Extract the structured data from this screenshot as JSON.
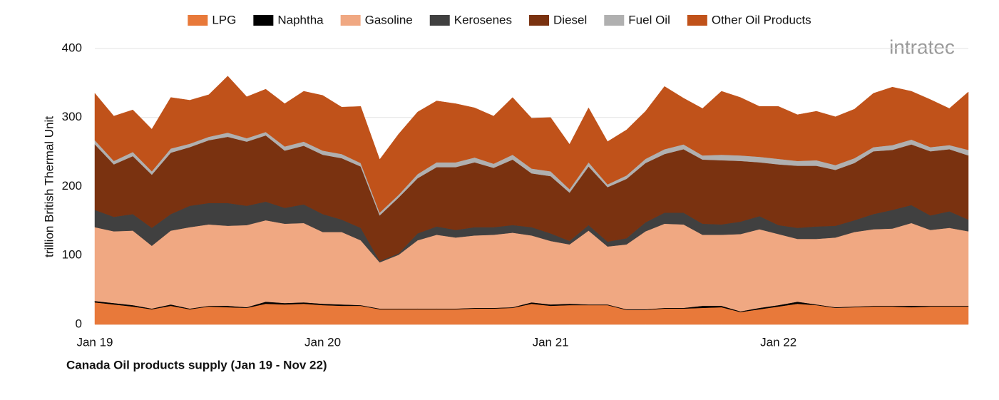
{
  "chart_data": {
    "type": "stacked-area",
    "caption": "Canada Oil products supply (Jan 19 - Nov 22)",
    "logo": "intratec",
    "y_label": "trillion British Thermal Unit",
    "categories": [
      "Jan 19",
      null,
      null,
      null,
      null,
      null,
      null,
      null,
      null,
      null,
      null,
      null,
      "Jan 20",
      null,
      null,
      null,
      null,
      null,
      null,
      null,
      null,
      null,
      null,
      null,
      "Jan 21",
      null,
      null,
      null,
      null,
      null,
      null,
      null,
      null,
      null,
      null,
      null,
      "Jan 22",
      null,
      null,
      null,
      null,
      null,
      null,
      null,
      null,
      null,
      null
    ],
    "ylim": [
      0,
      400
    ],
    "yticks": [
      0,
      100,
      200,
      300,
      400
    ],
    "grid": true,
    "series": [
      {
        "name": "LPG",
        "color": "#e8793a",
        "values": [
          32,
          29,
          26,
          22,
          27,
          22,
          26,
          25,
          24,
          30,
          29,
          30,
          28,
          27,
          27,
          22,
          22,
          22,
          22,
          22,
          23,
          23,
          24,
          30,
          27,
          28,
          28,
          28,
          21,
          21,
          23,
          23,
          24,
          25,
          18,
          22,
          26,
          30,
          28,
          24,
          25,
          26,
          26,
          25,
          26,
          26,
          26
        ]
      },
      {
        "name": "Naphtha",
        "color": "#000000",
        "values": [
          2,
          2,
          2,
          1,
          2,
          1,
          1,
          2,
          1,
          3,
          2,
          2,
          2,
          2,
          1,
          1,
          1,
          1,
          1,
          1,
          1,
          1,
          1,
          2,
          2,
          2,
          1,
          1,
          1,
          1,
          1,
          1,
          3,
          2,
          1,
          2,
          2,
          3,
          1,
          1,
          1,
          1,
          1,
          2,
          1,
          1,
          1
        ]
      },
      {
        "name": "Gasoline",
        "color": "#f0a882",
        "values": [
          107,
          104,
          108,
          91,
          107,
          118,
          118,
          116,
          119,
          118,
          115,
          115,
          104,
          105,
          94,
          67,
          78,
          99,
          107,
          103,
          105,
          106,
          108,
          97,
          92,
          86,
          107,
          84,
          94,
          113,
          122,
          121,
          103,
          103,
          112,
          114,
          103,
          91,
          95,
          101,
          108,
          111,
          112,
          120,
          110,
          113,
          108
        ]
      },
      {
        "name": "Kerosenes",
        "color": "#404040",
        "values": [
          25,
          21,
          24,
          26,
          24,
          31,
          31,
          33,
          28,
          27,
          23,
          27,
          26,
          18,
          18,
          2,
          2,
          10,
          12,
          11,
          12,
          11,
          11,
          12,
          11,
          5,
          8,
          7,
          9,
          13,
          16,
          17,
          16,
          15,
          18,
          19,
          13,
          16,
          18,
          17,
          17,
          22,
          27,
          26,
          21,
          24,
          17
        ]
      },
      {
        "name": "Diesel",
        "color": "#7a3210",
        "values": [
          95,
          76,
          84,
          77,
          89,
          85,
          91,
          96,
          93,
          96,
          83,
          85,
          86,
          89,
          89,
          66,
          81,
          80,
          86,
          91,
          94,
          86,
          95,
          78,
          83,
          70,
          85,
          79,
          86,
          86,
          85,
          92,
          93,
          93,
          88,
          78,
          88,
          90,
          88,
          81,
          83,
          91,
          87,
          88,
          93,
          90,
          93
        ]
      },
      {
        "name": "Fuel Oil",
        "color": "#b0b0b0",
        "values": [
          6,
          5,
          6,
          5,
          6,
          5,
          5,
          6,
          5,
          5,
          6,
          6,
          6,
          6,
          5,
          4,
          4,
          6,
          7,
          7,
          7,
          6,
          7,
          7,
          7,
          5,
          6,
          4,
          5,
          6,
          7,
          7,
          6,
          8,
          8,
          8,
          8,
          7,
          8,
          7,
          7,
          6,
          7,
          7,
          6,
          6,
          8
        ]
      },
      {
        "name": "Other Oil Products",
        "color": "#c0521a",
        "values": [
          68,
          65,
          61,
          61,
          74,
          63,
          61,
          82,
          60,
          62,
          62,
          73,
          80,
          68,
          82,
          77,
          88,
          90,
          89,
          85,
          72,
          69,
          83,
          73,
          78,
          65,
          79,
          62,
          66,
          69,
          91,
          67,
          68,
          92,
          84,
          73,
          76,
          67,
          71,
          70,
          71,
          78,
          84,
          70,
          69,
          53,
          84
        ]
      }
    ]
  }
}
